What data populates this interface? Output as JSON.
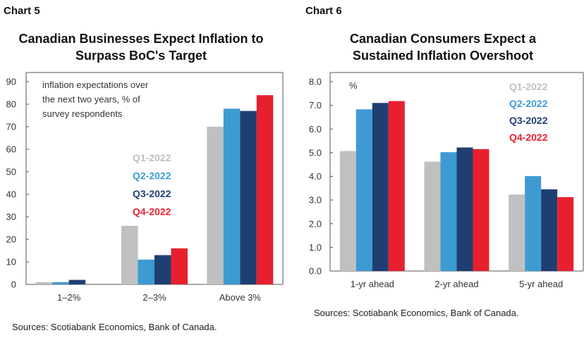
{
  "chart_data": [
    {
      "type": "bar",
      "label": "Chart 5",
      "title_lines": [
        "Canadian Businesses Expect Inflation to",
        "Surpass BoC's Target"
      ],
      "annotation_lines": [
        "inflation expectations over",
        "the next two years, % of",
        "survey respondents"
      ],
      "categories": [
        "1–2%",
        "2–3%",
        "Above 3%"
      ],
      "series": [
        {
          "name": "Q1-2022",
          "color": "#c0c0c0",
          "values": [
            1,
            26,
            70
          ]
        },
        {
          "name": "Q2-2022",
          "color": "#3d9bd2",
          "values": [
            1,
            11,
            78
          ]
        },
        {
          "name": "Q3-2022",
          "color": "#1f3f73",
          "values": [
            2,
            13,
            77
          ]
        },
        {
          "name": "Q4-2022",
          "color": "#e8202e",
          "values": [
            0,
            16,
            84
          ]
        }
      ],
      "ylim": [
        0,
        90
      ],
      "yticks": [
        "0",
        "10",
        "20",
        "30",
        "40",
        "50",
        "60",
        "70",
        "80",
        "90"
      ],
      "legend_placement": "middle",
      "source": "Sources: Scotiabank Economics, Bank of Canada."
    },
    {
      "type": "bar",
      "label": "Chart 6",
      "title_lines": [
        "Canadian Consumers Expect a",
        "Sustained Inflation Overshoot"
      ],
      "annotation_lines": [
        "%"
      ],
      "categories": [
        "1-yr ahead",
        "2-yr ahead",
        "5-yr ahead"
      ],
      "series": [
        {
          "name": "Q1-2022",
          "color": "#c0c0c0",
          "values": [
            5.07,
            4.62,
            3.23
          ]
        },
        {
          "name": "Q2-2022",
          "color": "#3d9bd2",
          "values": [
            6.83,
            5.02,
            4.01
          ]
        },
        {
          "name": "Q3-2022",
          "color": "#1f3f73",
          "values": [
            7.1,
            5.22,
            3.45
          ]
        },
        {
          "name": "Q4-2022",
          "color": "#e8202e",
          "values": [
            7.18,
            5.15,
            3.12
          ]
        }
      ],
      "ylim": [
        0,
        8
      ],
      "yticks": [
        "0.0",
        "1.0",
        "2.0",
        "3.0",
        "4.0",
        "5.0",
        "6.0",
        "7.0",
        "8.0"
      ],
      "legend_placement": "top-right",
      "source": "Sources: Scotiabank Economics, Bank of Canada."
    }
  ]
}
